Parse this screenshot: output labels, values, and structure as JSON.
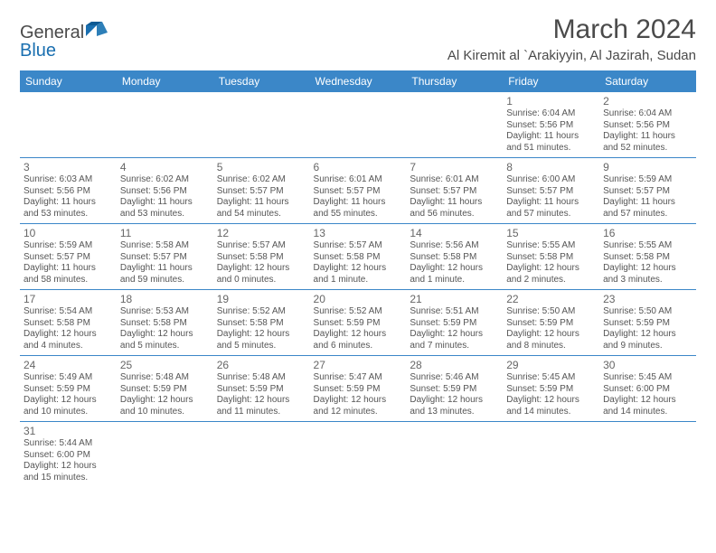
{
  "logo": {
    "line1": "General",
    "line2": "Blue"
  },
  "title": "March 2024",
  "location": "Al Kiremit al `Arakiyyin, Al Jazirah, Sudan",
  "columns": [
    "Sunday",
    "Monday",
    "Tuesday",
    "Wednesday",
    "Thursday",
    "Friday",
    "Saturday"
  ],
  "colors": {
    "header_bg": "#3b87c8",
    "header_text": "#ffffff",
    "border": "#3b87c8",
    "text": "#555555",
    "title": "#4a4a4a",
    "logo_gray": "#6b6b6b",
    "logo_blue": "#1a6fb0"
  },
  "weeks": [
    [
      null,
      null,
      null,
      null,
      null,
      {
        "n": "1",
        "sr": "6:04 AM",
        "ss": "5:56 PM",
        "dl": "11 hours and 51 minutes."
      },
      {
        "n": "2",
        "sr": "6:04 AM",
        "ss": "5:56 PM",
        "dl": "11 hours and 52 minutes."
      }
    ],
    [
      {
        "n": "3",
        "sr": "6:03 AM",
        "ss": "5:56 PM",
        "dl": "11 hours and 53 minutes."
      },
      {
        "n": "4",
        "sr": "6:02 AM",
        "ss": "5:56 PM",
        "dl": "11 hours and 53 minutes."
      },
      {
        "n": "5",
        "sr": "6:02 AM",
        "ss": "5:57 PM",
        "dl": "11 hours and 54 minutes."
      },
      {
        "n": "6",
        "sr": "6:01 AM",
        "ss": "5:57 PM",
        "dl": "11 hours and 55 minutes."
      },
      {
        "n": "7",
        "sr": "6:01 AM",
        "ss": "5:57 PM",
        "dl": "11 hours and 56 minutes."
      },
      {
        "n": "8",
        "sr": "6:00 AM",
        "ss": "5:57 PM",
        "dl": "11 hours and 57 minutes."
      },
      {
        "n": "9",
        "sr": "5:59 AM",
        "ss": "5:57 PM",
        "dl": "11 hours and 57 minutes."
      }
    ],
    [
      {
        "n": "10",
        "sr": "5:59 AM",
        "ss": "5:57 PM",
        "dl": "11 hours and 58 minutes."
      },
      {
        "n": "11",
        "sr": "5:58 AM",
        "ss": "5:57 PM",
        "dl": "11 hours and 59 minutes."
      },
      {
        "n": "12",
        "sr": "5:57 AM",
        "ss": "5:58 PM",
        "dl": "12 hours and 0 minutes."
      },
      {
        "n": "13",
        "sr": "5:57 AM",
        "ss": "5:58 PM",
        "dl": "12 hours and 1 minute."
      },
      {
        "n": "14",
        "sr": "5:56 AM",
        "ss": "5:58 PM",
        "dl": "12 hours and 1 minute."
      },
      {
        "n": "15",
        "sr": "5:55 AM",
        "ss": "5:58 PM",
        "dl": "12 hours and 2 minutes."
      },
      {
        "n": "16",
        "sr": "5:55 AM",
        "ss": "5:58 PM",
        "dl": "12 hours and 3 minutes."
      }
    ],
    [
      {
        "n": "17",
        "sr": "5:54 AM",
        "ss": "5:58 PM",
        "dl": "12 hours and 4 minutes."
      },
      {
        "n": "18",
        "sr": "5:53 AM",
        "ss": "5:58 PM",
        "dl": "12 hours and 5 minutes."
      },
      {
        "n": "19",
        "sr": "5:52 AM",
        "ss": "5:58 PM",
        "dl": "12 hours and 5 minutes."
      },
      {
        "n": "20",
        "sr": "5:52 AM",
        "ss": "5:59 PM",
        "dl": "12 hours and 6 minutes."
      },
      {
        "n": "21",
        "sr": "5:51 AM",
        "ss": "5:59 PM",
        "dl": "12 hours and 7 minutes."
      },
      {
        "n": "22",
        "sr": "5:50 AM",
        "ss": "5:59 PM",
        "dl": "12 hours and 8 minutes."
      },
      {
        "n": "23",
        "sr": "5:50 AM",
        "ss": "5:59 PM",
        "dl": "12 hours and 9 minutes."
      }
    ],
    [
      {
        "n": "24",
        "sr": "5:49 AM",
        "ss": "5:59 PM",
        "dl": "12 hours and 10 minutes."
      },
      {
        "n": "25",
        "sr": "5:48 AM",
        "ss": "5:59 PM",
        "dl": "12 hours and 10 minutes."
      },
      {
        "n": "26",
        "sr": "5:48 AM",
        "ss": "5:59 PM",
        "dl": "12 hours and 11 minutes."
      },
      {
        "n": "27",
        "sr": "5:47 AM",
        "ss": "5:59 PM",
        "dl": "12 hours and 12 minutes."
      },
      {
        "n": "28",
        "sr": "5:46 AM",
        "ss": "5:59 PM",
        "dl": "12 hours and 13 minutes."
      },
      {
        "n": "29",
        "sr": "5:45 AM",
        "ss": "5:59 PM",
        "dl": "12 hours and 14 minutes."
      },
      {
        "n": "30",
        "sr": "5:45 AM",
        "ss": "6:00 PM",
        "dl": "12 hours and 14 minutes."
      }
    ],
    [
      {
        "n": "31",
        "sr": "5:44 AM",
        "ss": "6:00 PM",
        "dl": "12 hours and 15 minutes."
      },
      null,
      null,
      null,
      null,
      null,
      null
    ]
  ],
  "labels": {
    "sunrise": "Sunrise:",
    "sunset": "Sunset:",
    "daylight": "Daylight:"
  }
}
